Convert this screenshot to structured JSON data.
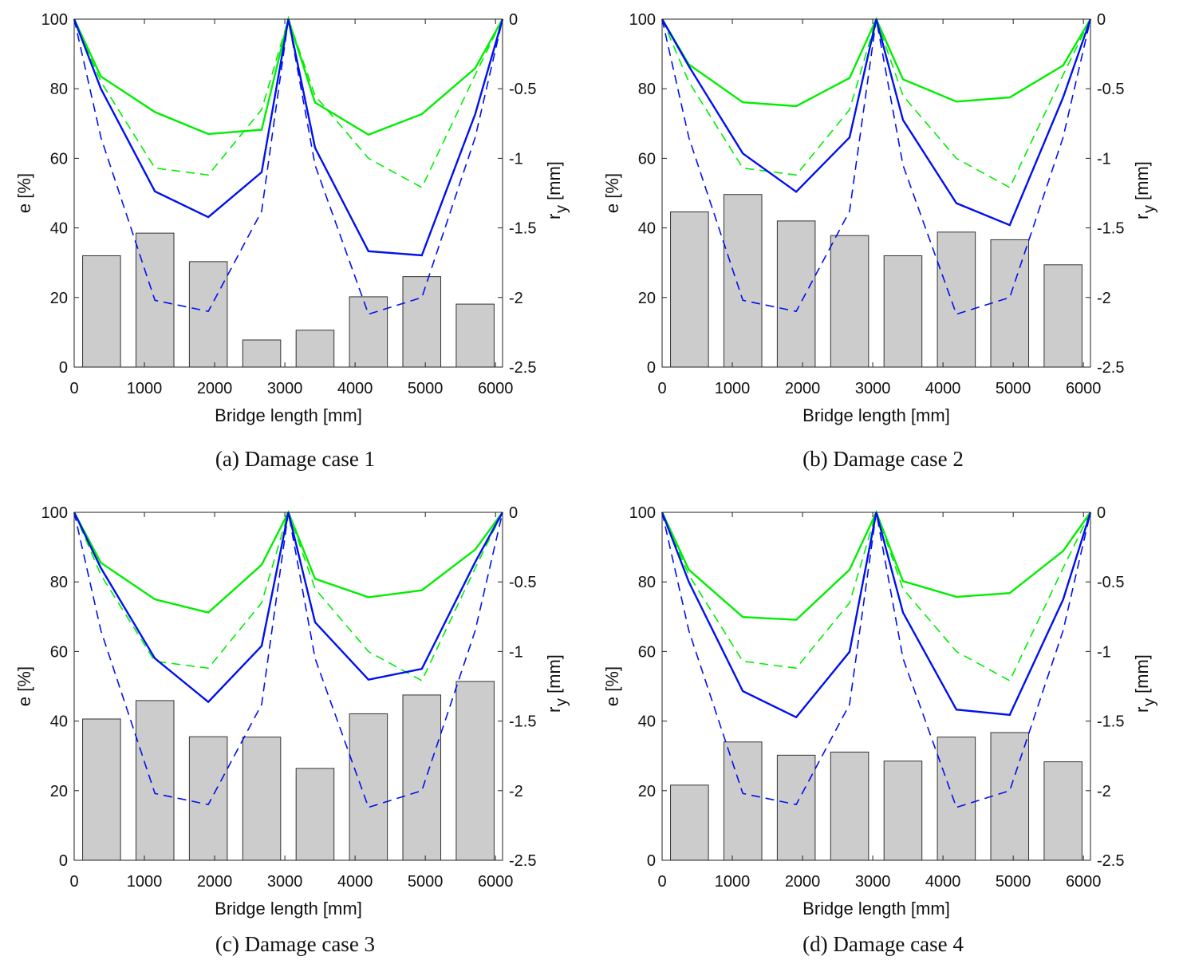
{
  "figure": {
    "captions": [
      "(a) Damage case 1",
      "(b) Damage case 2",
      "(c) Damage case 3",
      "(d) Damage case 4"
    ],
    "colors": {
      "green": "#00ee00",
      "blue": "#0010ee",
      "bar_fill": "#cccccc",
      "bar_edge": "#333333"
    }
  },
  "chart_data": [
    {
      "type": "bar",
      "title": "(a) Damage case 1",
      "xlabel": "Bridge length [mm]",
      "ylabel": "e [%]",
      "y2label_main": "r",
      "y2label_sub": "y",
      "y2label_unit": "[mm]",
      "xlim": [
        0,
        6100
      ],
      "ylim": [
        0,
        100
      ],
      "y2lim": [
        -2.5,
        0
      ],
      "xticks": [
        "0",
        "1000",
        "2000",
        "3000",
        "4000",
        "5000",
        "6000"
      ],
      "yticks": [
        "0",
        "20",
        "40",
        "60",
        "80",
        "100"
      ],
      "y2ticks": [
        "-2.5",
        "-2",
        "-1.5",
        "-1",
        "-0.5",
        "0"
      ],
      "bars": {
        "centers": [
          390,
          1150,
          1910,
          2670,
          3430,
          4190,
          4950,
          5710
        ],
        "width": 540,
        "values": [
          32,
          38.5,
          30.3,
          7.8,
          10.6,
          20.2,
          26,
          18.1
        ]
      },
      "line_x": [
        0,
        380,
        1150,
        1910,
        2670,
        3050,
        3430,
        4190,
        4950,
        5710,
        6100
      ],
      "series": [
        {
          "name": "green solid",
          "axis": "left",
          "style": "solid",
          "color": "green",
          "values": [
            100,
            83.5,
            73.3,
            67,
            68.2,
            100,
            76,
            66.8,
            72.7,
            85.9,
            100
          ]
        },
        {
          "name": "green dashed",
          "axis": "right",
          "style": "dashed",
          "color": "green",
          "values": [
            0,
            -0.45,
            -1.07,
            -1.12,
            -0.65,
            0,
            -0.55,
            -1,
            -1.21,
            -0.4,
            0
          ]
        },
        {
          "name": "blue solid",
          "axis": "left",
          "style": "solid",
          "color": "blue",
          "values": [
            100,
            80,
            50.5,
            43.1,
            56,
            100,
            63,
            33.3,
            32.1,
            72.7,
            100
          ]
        },
        {
          "name": "blue dashed",
          "axis": "right",
          "style": "dashed",
          "color": "blue",
          "values": [
            0,
            -0.85,
            -2.02,
            -2.1,
            -1.38,
            0,
            -1.05,
            -2.12,
            -2,
            -0.85,
            0
          ]
        }
      ]
    },
    {
      "type": "bar",
      "title": "(b) Damage case 2",
      "xlabel": "Bridge length [mm]",
      "ylabel": "e [%]",
      "y2label_main": "r",
      "y2label_sub": "y",
      "y2label_unit": "[mm]",
      "xlim": [
        0,
        6100
      ],
      "ylim": [
        0,
        100
      ],
      "y2lim": [
        -2.5,
        0
      ],
      "xticks": [
        "0",
        "1000",
        "2000",
        "3000",
        "4000",
        "5000",
        "6000"
      ],
      "yticks": [
        "0",
        "20",
        "40",
        "60",
        "80",
        "100"
      ],
      "y2ticks": [
        "-2.5",
        "-2",
        "-1.5",
        "-1",
        "-0.5",
        "0"
      ],
      "bars": {
        "centers": [
          390,
          1150,
          1910,
          2670,
          3430,
          4190,
          4950,
          5710
        ],
        "width": 540,
        "values": [
          44.6,
          49.6,
          42,
          37.8,
          32,
          38.8,
          36.6,
          29.4
        ]
      },
      "line_x": [
        0,
        380,
        1150,
        1910,
        2670,
        3050,
        3430,
        4190,
        4950,
        5710,
        6100
      ],
      "series": [
        {
          "name": "green solid",
          "axis": "left",
          "style": "solid",
          "color": "green",
          "values": [
            100,
            87,
            76.1,
            75,
            83.1,
            100,
            82.7,
            76.3,
            77.5,
            86.7,
            100
          ]
        },
        {
          "name": "green dashed",
          "axis": "right",
          "style": "dashed",
          "color": "green",
          "values": [
            0,
            -0.45,
            -1.07,
            -1.12,
            -0.65,
            0,
            -0.55,
            -1,
            -1.21,
            -0.4,
            0
          ]
        },
        {
          "name": "blue solid",
          "axis": "left",
          "style": "solid",
          "color": "blue",
          "values": [
            100,
            86.5,
            61.4,
            50.4,
            66,
            100,
            71,
            47.1,
            40.8,
            77.5,
            100
          ]
        },
        {
          "name": "blue dashed",
          "axis": "right",
          "style": "dashed",
          "color": "blue",
          "values": [
            0,
            -0.85,
            -2.02,
            -2.1,
            -1.38,
            0,
            -1.05,
            -2.12,
            -2,
            -0.85,
            0
          ]
        }
      ]
    },
    {
      "type": "bar",
      "title": "(c) Damage case 3",
      "xlabel": "Bridge length [mm]",
      "ylabel": "e [%]",
      "y2label_main": "r",
      "y2label_sub": "y",
      "y2label_unit": "[mm]",
      "xlim": [
        0,
        6100
      ],
      "ylim": [
        0,
        100
      ],
      "y2lim": [
        -2.5,
        0
      ],
      "xticks": [
        "0",
        "1000",
        "2000",
        "3000",
        "4000",
        "5000",
        "6000"
      ],
      "yticks": [
        "0",
        "20",
        "40",
        "60",
        "80",
        "100"
      ],
      "y2ticks": [
        "-2.5",
        "-2",
        "-1.5",
        "-1",
        "-0.5",
        "0"
      ],
      "bars": {
        "centers": [
          390,
          1150,
          1910,
          2670,
          3430,
          4190,
          4950,
          5710
        ],
        "width": 540,
        "values": [
          40.6,
          45.9,
          35.5,
          35.4,
          26.4,
          42.1,
          47.5,
          51.4
        ]
      },
      "line_x": [
        0,
        380,
        1150,
        1910,
        2670,
        3050,
        3430,
        4190,
        4950,
        5710,
        6100
      ],
      "series": [
        {
          "name": "green solid",
          "axis": "left",
          "style": "solid",
          "color": "green",
          "values": [
            100,
            85.5,
            75,
            71.2,
            84.9,
            100,
            80.9,
            75.6,
            77.6,
            89.3,
            100
          ]
        },
        {
          "name": "green dashed",
          "axis": "right",
          "style": "dashed",
          "color": "green",
          "values": [
            0,
            -0.45,
            -1.07,
            -1.12,
            -0.65,
            0,
            -0.55,
            -1,
            -1.21,
            -0.4,
            0
          ]
        },
        {
          "name": "blue solid",
          "axis": "left",
          "style": "solid",
          "color": "blue",
          "values": [
            100,
            84,
            58,
            45.5,
            61.6,
            100,
            68.4,
            51.9,
            55,
            85.7,
            100
          ]
        },
        {
          "name": "blue dashed",
          "axis": "right",
          "style": "dashed",
          "color": "blue",
          "values": [
            0,
            -0.85,
            -2.02,
            -2.1,
            -1.38,
            0,
            -1.05,
            -2.12,
            -2,
            -0.85,
            0
          ]
        }
      ]
    },
    {
      "type": "bar",
      "title": "(d) Damage case 4",
      "xlabel": "Bridge length [mm]",
      "ylabel": "e [%]",
      "y2label_main": "r",
      "y2label_sub": "y",
      "y2label_unit": "[mm]",
      "xlim": [
        0,
        6100
      ],
      "ylim": [
        0,
        100
      ],
      "y2lim": [
        -2.5,
        0
      ],
      "xticks": [
        "0",
        "1000",
        "2000",
        "3000",
        "4000",
        "5000",
        "6000"
      ],
      "yticks": [
        "0",
        "20",
        "40",
        "60",
        "80",
        "100"
      ],
      "y2ticks": [
        "-2.5",
        "-2",
        "-1.5",
        "-1",
        "-0.5",
        "0"
      ],
      "bars": {
        "centers": [
          390,
          1150,
          1910,
          2670,
          3430,
          4190,
          4950,
          5710
        ],
        "width": 540,
        "values": [
          21.6,
          34,
          30.2,
          31.1,
          28.5,
          35.4,
          36.7,
          28.3
        ]
      },
      "line_x": [
        0,
        380,
        1150,
        1910,
        2670,
        3050,
        3430,
        4190,
        4950,
        5710,
        6100
      ],
      "series": [
        {
          "name": "green solid",
          "axis": "left",
          "style": "solid",
          "color": "green",
          "values": [
            100,
            83.5,
            69.9,
            69.1,
            83.5,
            100,
            80.2,
            75.7,
            76.8,
            88.9,
            100
          ]
        },
        {
          "name": "green dashed",
          "axis": "right",
          "style": "dashed",
          "color": "green",
          "values": [
            0,
            -0.45,
            -1.07,
            -1.12,
            -0.65,
            0,
            -0.55,
            -1,
            -1.21,
            -0.4,
            0
          ]
        },
        {
          "name": "blue solid",
          "axis": "left",
          "style": "solid",
          "color": "blue",
          "values": [
            100,
            80,
            48.6,
            41.1,
            59.9,
            100,
            71.2,
            43.3,
            41.8,
            74.9,
            100
          ]
        },
        {
          "name": "blue dashed",
          "axis": "right",
          "style": "dashed",
          "color": "blue",
          "values": [
            0,
            -0.85,
            -2.02,
            -2.1,
            -1.38,
            0,
            -1.05,
            -2.12,
            -2,
            -0.85,
            0
          ]
        }
      ]
    }
  ]
}
